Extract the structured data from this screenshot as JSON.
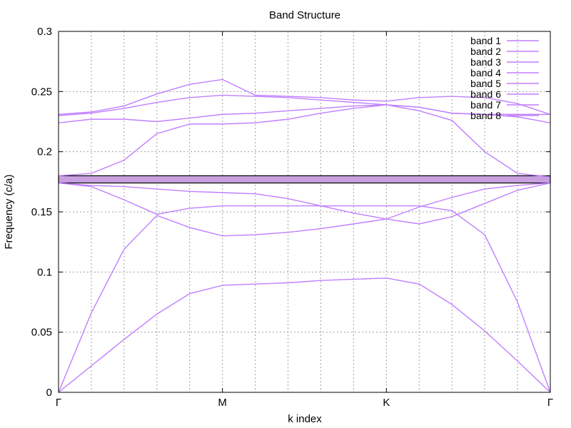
{
  "chart_data": {
    "type": "line",
    "title": "Band Structure",
    "xlabel": "k index",
    "ylabel": "Frequency (c/a)",
    "xlim": [
      0,
      15
    ],
    "ylim": [
      0,
      0.3
    ],
    "yticks": [
      0,
      0.05,
      0.1,
      0.15,
      0.2,
      0.25,
      0.3
    ],
    "ytick_labels": [
      "0",
      "0.05",
      "0.1",
      "0.15",
      "0.2",
      "0.25",
      "0.3"
    ],
    "xticks": [
      0,
      5,
      10,
      15
    ],
    "xtick_labels": [
      "Γ",
      "M",
      "K",
      "Γ"
    ],
    "x_gridlines": [
      0,
      1,
      2,
      3,
      4,
      5,
      6,
      7,
      8,
      9,
      10,
      11,
      12,
      13,
      14,
      15
    ],
    "grid": true,
    "legend_position": "top-right",
    "line_color": "#c07fff",
    "x": [
      0,
      1,
      2,
      3,
      4,
      5,
      6,
      7,
      8,
      9,
      10,
      11,
      12,
      13,
      14,
      15
    ],
    "series": [
      {
        "name": "band 1",
        "values": [
          0.0,
          0.022,
          0.044,
          0.065,
          0.082,
          0.089,
          0.09,
          0.091,
          0.093,
          0.094,
          0.095,
          0.09,
          0.073,
          0.051,
          0.026,
          0.0
        ]
      },
      {
        "name": "band 2",
        "values": [
          0.0,
          0.066,
          0.119,
          0.147,
          0.137,
          0.13,
          0.131,
          0.133,
          0.136,
          0.14,
          0.144,
          0.154,
          0.162,
          0.169,
          0.172,
          0.174
        ]
      },
      {
        "name": "band 3",
        "values": [
          0.174,
          0.171,
          0.16,
          0.148,
          0.153,
          0.155,
          0.155,
          0.155,
          0.155,
          0.155,
          0.155,
          0.155,
          0.151,
          0.131,
          0.075,
          0.0
        ]
      },
      {
        "name": "band 4",
        "values": [
          0.174,
          0.172,
          0.171,
          0.169,
          0.167,
          0.166,
          0.165,
          0.161,
          0.155,
          0.149,
          0.144,
          0.14,
          0.146,
          0.157,
          0.168,
          0.174
        ]
      },
      {
        "name": "band 5",
        "values": [
          0.18,
          0.182,
          0.193,
          0.215,
          0.223,
          0.223,
          0.224,
          0.227,
          0.232,
          0.236,
          0.239,
          0.234,
          0.226,
          0.2,
          0.182,
          0.179
        ]
      },
      {
        "name": "band 6",
        "values": [
          0.224,
          0.227,
          0.227,
          0.225,
          0.228,
          0.231,
          0.232,
          0.234,
          0.236,
          0.238,
          0.239,
          0.237,
          0.232,
          0.231,
          0.229,
          0.224
        ]
      },
      {
        "name": "band 7",
        "values": [
          0.23,
          0.232,
          0.236,
          0.241,
          0.245,
          0.247,
          0.246,
          0.245,
          0.243,
          0.241,
          0.239,
          0.237,
          0.232,
          0.231,
          0.231,
          0.231
        ]
      },
      {
        "name": "band 8",
        "values": [
          0.231,
          0.233,
          0.238,
          0.248,
          0.256,
          0.26,
          0.247,
          0.246,
          0.245,
          0.243,
          0.242,
          0.245,
          0.246,
          0.245,
          0.24,
          0.231
        ]
      }
    ],
    "band_gap": {
      "y_min": 0.174,
      "y_max": 0.18,
      "fill_color": "#c8a0e0",
      "border_color": "#000000"
    }
  }
}
